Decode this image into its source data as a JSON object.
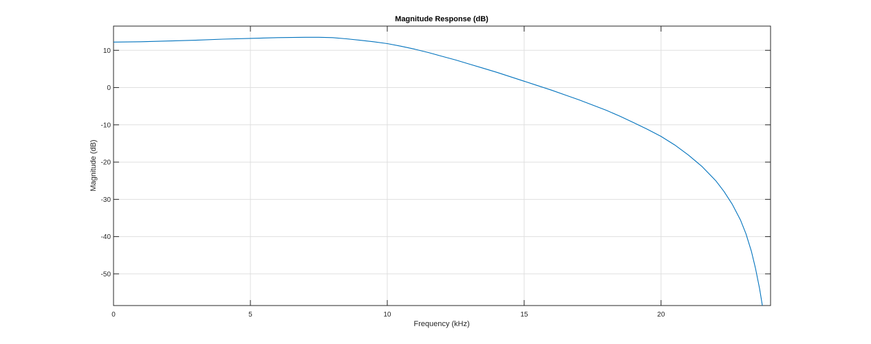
{
  "chart_data": {
    "type": "line",
    "title": "Magnitude Response (dB)",
    "xlabel": "Frequency (kHz)",
    "ylabel": "Magnitude (dB)",
    "xlim": [
      0,
      24
    ],
    "ylim": [
      -58.5,
      16.5
    ],
    "xticks": [
      0,
      5,
      10,
      15,
      20
    ],
    "yticks": [
      10,
      0,
      -10,
      -20,
      -30,
      -40,
      -50
    ],
    "grid": true,
    "legend": "none",
    "series": [
      {
        "color": "#0072bd",
        "x": [
          0,
          1,
          2,
          3,
          4,
          5,
          6,
          7,
          7.5,
          8,
          8.5,
          9,
          9.5,
          10,
          10.5,
          11,
          11.5,
          12,
          12.5,
          13,
          13.5,
          14,
          14.5,
          15,
          15.5,
          16,
          16.5,
          17,
          17.5,
          18,
          18.5,
          19,
          19.5,
          20,
          20.5,
          21,
          21.5,
          22,
          22.3,
          22.6,
          22.9,
          23.1,
          23.3,
          23.45,
          23.6,
          23.7
        ],
        "y": [
          12.2,
          12.3,
          12.5,
          12.7,
          13.0,
          13.2,
          13.4,
          13.5,
          13.5,
          13.4,
          13.1,
          12.7,
          12.3,
          11.8,
          11.1,
          10.3,
          9.4,
          8.4,
          7.4,
          6.3,
          5.2,
          4.1,
          2.9,
          1.7,
          0.5,
          -0.7,
          -2.0,
          -3.3,
          -4.7,
          -6.1,
          -7.7,
          -9.4,
          -11.2,
          -13.1,
          -15.4,
          -18.1,
          -21.2,
          -25.0,
          -27.9,
          -31.3,
          -35.5,
          -39.2,
          -43.9,
          -48.5,
          -54.0,
          -58.5
        ]
      }
    ]
  }
}
